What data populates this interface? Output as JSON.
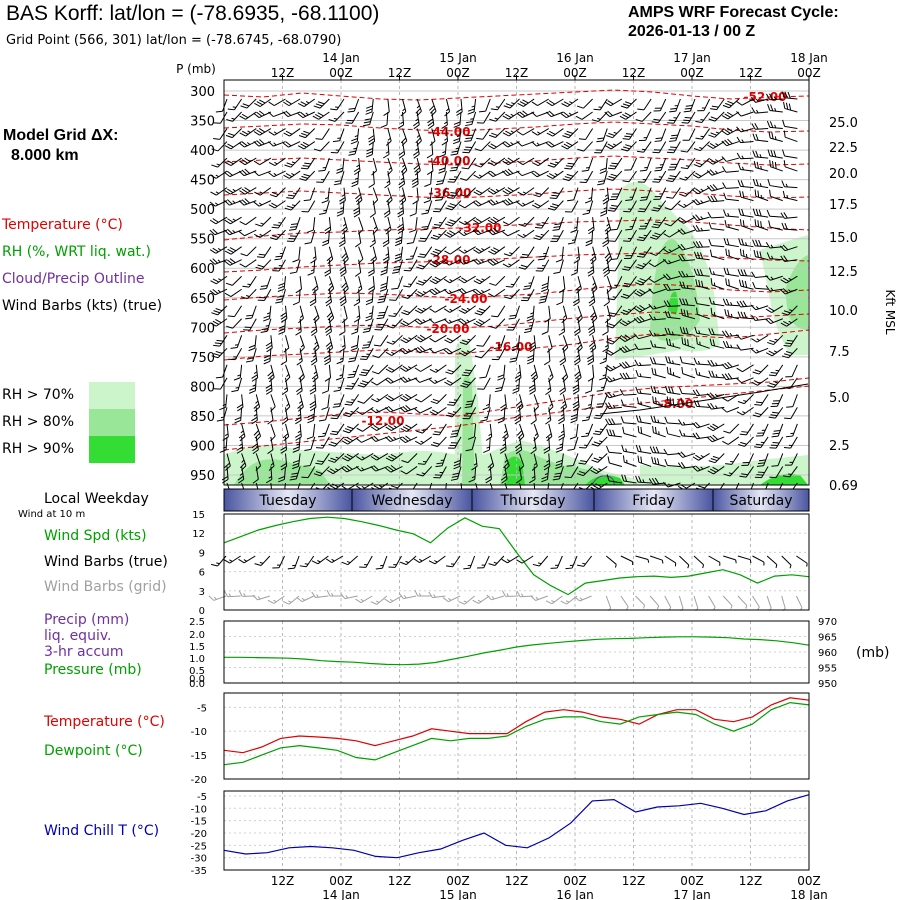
{
  "header": {
    "title": "BAS Korff:  lat/lon = (-78.6935, -68.1100)",
    "subtitle": "Grid Point (566, 301) lat/lon = (-78.6745, -68.0790)",
    "cycle_line1": "AMPS WRF Forecast Cycle:",
    "cycle_line2": "2026-01-13 / 00  Z"
  },
  "left_panel": {
    "model_grid_label": "Model Grid ΔX:",
    "model_grid_value": "8.000 km",
    "temperature_label": "Temperature (°C)",
    "rh_label": "RH (%, WRT liq. wat.)",
    "cloud_label": "Cloud/Precip Outline",
    "wind_label": "Wind Barbs (kts) (true)",
    "rh70": "RH > 70%",
    "rh80": "RH > 80%",
    "rh90": "RH > 90%",
    "local_weekday": "Local Weekday",
    "wind_at_10m": "Wind at 10 m",
    "wind_spd": "Wind Spd (kts)",
    "wind_barbs_true": "Wind Barbs (true)",
    "wind_barbs_grid": "Wind Barbs (grid)",
    "precip": "Precip (mm)",
    "liq_equiv": "liq. equiv.",
    "accum": "3-hr accum",
    "pressure": "Pressure (mb)",
    "temperature2": "Temperature (°C)",
    "dewpoint": "Dewpoint (°C)",
    "wind_chill": "Wind Chill T (°C)"
  },
  "colors": {
    "temperature": "#e00000",
    "rh": "#00a000",
    "cloud": "#7030a0",
    "wind": "#000000",
    "wind_grid": "#a0a0a0",
    "rh70": "#ccf5cc",
    "rh80": "#99e699",
    "rh90": "#33dd33",
    "wind_chill": "#0000b0",
    "weekday_dark": "#4a55a0",
    "weekday_light": "#e6e8f5"
  },
  "time_axis": {
    "top_hours": [
      "12Z",
      "00Z",
      "12Z",
      "00Z",
      "12Z",
      "00Z",
      "12Z",
      "00Z",
      "12Z",
      "00Z"
    ],
    "top_dates": [
      "14 Jan",
      "15 Jan",
      "16 Jan",
      "17 Jan",
      "18 Jan"
    ],
    "bottom_hours": [
      "12Z",
      "00Z",
      "12Z",
      "00Z",
      "12Z",
      "00Z",
      "12Z",
      "00Z",
      "12Z",
      "00Z"
    ],
    "bottom_dates": [
      "14 Jan",
      "15 Jan",
      "16 Jan",
      "17 Jan",
      "18 Jan"
    ],
    "weekdays": [
      "Tuesday",
      "Wednesday",
      "Thursday",
      "Friday",
      "Saturday"
    ]
  },
  "chart_data": [
    {
      "id": "profile",
      "type": "heatmap",
      "ylabel": "P (mb)",
      "ylabel_right": "Kft MSL",
      "pressure_ticks": [
        300,
        350,
        400,
        450,
        500,
        550,
        600,
        650,
        700,
        750,
        800,
        850,
        900,
        950
      ],
      "height_ticks": [
        "25.0",
        "22.5",
        "20.0",
        "17.5",
        "15.0",
        "12.5",
        "10.0",
        "7.5",
        "5.0",
        "2.5",
        "0.69"
      ],
      "temperature_contour_labels": [
        "-52.00",
        "-44.00",
        "-40.00",
        "-36.00",
        "-32.00",
        "-28.00",
        "-24.00",
        "-20.00",
        "-16.00",
        "-12.00",
        "-8.00"
      ]
    },
    {
      "id": "wind",
      "type": "line",
      "ylim": [
        0,
        15
      ],
      "yticks": [
        0,
        3,
        6,
        9,
        12,
        15
      ],
      "series": [
        {
          "name": "Wind Spd (kts)",
          "values": [
            10.5,
            11.5,
            12.5,
            13.2,
            13.8,
            14.3,
            14.5,
            14.3,
            13.8,
            13.2,
            12.5,
            11.9,
            10.5,
            12.8,
            14.4,
            13.1,
            12.7,
            9.0,
            5.5,
            3.8,
            2.4,
            4.2,
            4.6,
            5.0,
            5.2,
            5.3,
            5.1,
            5.3,
            5.8,
            6.3,
            5.5,
            4.2,
            5.3,
            5.5,
            5.2
          ]
        }
      ]
    },
    {
      "id": "precip_pressure",
      "type": "line",
      "ylim_left": [
        0,
        2.5
      ],
      "yticks_left": [
        "0.0",
        "0.0",
        "0.5",
        "1.0",
        "1.5",
        "2.0",
        "2.5"
      ],
      "ylim_right": [
        950,
        970
      ],
      "yticks_right": [
        970,
        965,
        960,
        955,
        950
      ],
      "ylabel_right": "(mb)",
      "series": [
        {
          "name": "Pressure (mb)",
          "values": [
            958.3,
            958.3,
            958.2,
            958.1,
            958.0,
            957.7,
            957.2,
            956.9,
            956.7,
            956.3,
            956.0,
            955.9,
            956.1,
            956.6,
            957.6,
            958.6,
            959.7,
            960.6,
            961.6,
            962.3,
            962.8,
            963.3,
            963.7,
            964.1,
            964.3,
            964.4,
            964.6,
            964.8,
            964.9,
            964.9,
            964.8,
            964.6,
            964.2,
            964.0,
            963.6,
            963.0,
            962.2
          ]
        }
      ]
    },
    {
      "id": "temp_dew",
      "type": "line",
      "yticks": [
        -5,
        -10,
        -15,
        -20
      ],
      "ylim": [
        -20,
        -2
      ],
      "series": [
        {
          "name": "Temperature (°C)",
          "values": [
            -14.0,
            -14.5,
            -13.3,
            -11.5,
            -11.0,
            -11.2,
            -11.5,
            -12.0,
            -13.0,
            -12.0,
            -11.0,
            -9.5,
            -10.0,
            -10.5,
            -10.5,
            -10.5,
            -8.0,
            -6.0,
            -5.5,
            -6.0,
            -7.0,
            -7.5,
            -8.5,
            -6.5,
            -5.5,
            -5.5,
            -7.5,
            -8.0,
            -7.0,
            -4.5,
            -3.0,
            -3.5
          ]
        },
        {
          "name": "Dewpoint (°C)",
          "values": [
            -17.0,
            -16.5,
            -15.0,
            -13.5,
            -13.0,
            -13.5,
            -14.0,
            -15.5,
            -16.0,
            -14.5,
            -13.0,
            -11.5,
            -12.0,
            -11.5,
            -11.5,
            -11.0,
            -9.0,
            -7.5,
            -7.0,
            -7.0,
            -8.0,
            -8.5,
            -7.0,
            -6.5,
            -6.0,
            -6.5,
            -8.5,
            -10.0,
            -8.5,
            -5.5,
            -4.0,
            -4.5
          ]
        }
      ]
    },
    {
      "id": "wind_chill",
      "type": "line",
      "yticks": [
        -5,
        -10,
        -15,
        -20,
        -25,
        -30,
        -35
      ],
      "ylim": [
        -35,
        -3
      ],
      "series": [
        {
          "name": "Wind Chill T (°C)",
          "values": [
            -27.0,
            -28.5,
            -28.0,
            -26.0,
            -25.5,
            -26.0,
            -27.0,
            -29.5,
            -30.0,
            -28.0,
            -26.5,
            -23.0,
            -20.0,
            -25.0,
            -26.0,
            -22.0,
            -16.0,
            -7.0,
            -6.5,
            -11.5,
            -9.5,
            -9.0,
            -8.0,
            -10.0,
            -12.5,
            -11.0,
            -7.0,
            -4.5
          ]
        }
      ]
    }
  ]
}
